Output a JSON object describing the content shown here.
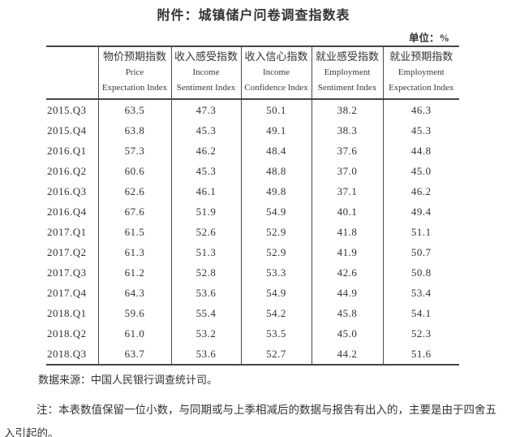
{
  "page": {
    "title": "附件：城镇储户问卷调查指数表",
    "unit_label": "单位：%"
  },
  "table": {
    "columns": [
      {
        "cn": "物价预期指数",
        "en_line1": "Price",
        "en_line2": "Expectation Index"
      },
      {
        "cn": "收入感受指数",
        "en_line1": "Income",
        "en_line2": "Sentiment Index"
      },
      {
        "cn": "收入信心指数",
        "en_line1": "Income",
        "en_line2": "Confidence Index"
      },
      {
        "cn": "就业感受指数",
        "en_line1": "Employment",
        "en_line2": "Sentiment Index"
      },
      {
        "cn": "就业预期指数",
        "en_line1": "Employment",
        "en_line2": "Expectation Index"
      }
    ],
    "rows": [
      {
        "period": "2015.Q3",
        "values": [
          "63.5",
          "47.3",
          "50.1",
          "38.2",
          "46.3"
        ]
      },
      {
        "period": "2015.Q4",
        "values": [
          "63.8",
          "45.3",
          "49.1",
          "38.3",
          "45.3"
        ]
      },
      {
        "period": "2016.Q1",
        "values": [
          "57.3",
          "46.2",
          "48.4",
          "37.6",
          "44.8"
        ]
      },
      {
        "period": "2016.Q2",
        "values": [
          "60.6",
          "45.3",
          "48.8",
          "37.0",
          "45.0"
        ]
      },
      {
        "period": "2016.Q3",
        "values": [
          "62.6",
          "46.1",
          "49.8",
          "37.1",
          "46.2"
        ]
      },
      {
        "period": "2016.Q4",
        "values": [
          "67.6",
          "51.9",
          "54.9",
          "40.1",
          "49.4"
        ]
      },
      {
        "period": "2017.Q1",
        "values": [
          "61.5",
          "52.6",
          "52.9",
          "41.8",
          "51.1"
        ]
      },
      {
        "period": "2017.Q2",
        "values": [
          "61.3",
          "51.3",
          "52.9",
          "41.9",
          "50.7"
        ]
      },
      {
        "period": "2017.Q3",
        "values": [
          "61.2",
          "52.8",
          "53.3",
          "42.6",
          "50.8"
        ]
      },
      {
        "period": "2017.Q4",
        "values": [
          "64.3",
          "53.6",
          "54.9",
          "44.9",
          "53.4"
        ]
      },
      {
        "period": "2018.Q1",
        "values": [
          "59.6",
          "55.4",
          "54.2",
          "45.8",
          "54.1"
        ]
      },
      {
        "period": "2018.Q2",
        "values": [
          "61.0",
          "53.2",
          "53.5",
          "45.0",
          "52.3"
        ]
      },
      {
        "period": "2018.Q3",
        "values": [
          "63.7",
          "53.6",
          "52.7",
          "44.2",
          "51.6"
        ]
      }
    ]
  },
  "footer": {
    "source": "数据来源：中国人民银行调查统计司。",
    "note": "注：本表数值保留一位小数，与同期或与上季相减后的数据与报告有出入的，主要是由于四舍五入引起的。"
  },
  "colors": {
    "text": "#333333",
    "rule": "#454545"
  }
}
